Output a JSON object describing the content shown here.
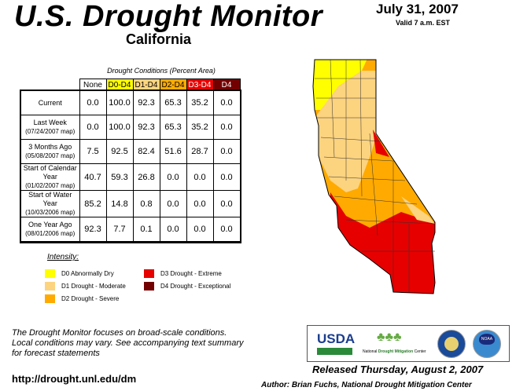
{
  "header": {
    "title": "U.S. Drought Monitor",
    "region": "California",
    "date": "July 31, 2007",
    "valid": "Valid 7 a.m. EST"
  },
  "table": {
    "caption": "Drought Conditions (Percent Area)",
    "columns": [
      "None",
      "D0-D4",
      "D1-D4",
      "D2-D4",
      "D3-D4",
      "D4"
    ],
    "column_colors": [
      "#ffffff",
      "#ffff00",
      "#fcd37f",
      "#ffaa00",
      "#e60000",
      "#730000"
    ],
    "rows": [
      {
        "label": "Current",
        "sub": "",
        "values": [
          "0.0",
          "100.0",
          "92.3",
          "65.3",
          "35.2",
          "0.0"
        ]
      },
      {
        "label": "Last Week",
        "sub": "(07/24/2007 map)",
        "values": [
          "0.0",
          "100.0",
          "92.3",
          "65.3",
          "35.2",
          "0.0"
        ]
      },
      {
        "label": "3 Months Ago",
        "sub": "(05/08/2007 map)",
        "values": [
          "7.5",
          "92.5",
          "82.4",
          "51.6",
          "28.7",
          "0.0"
        ]
      },
      {
        "label": "Start of Calendar Year",
        "sub": "(01/02/2007 map)",
        "values": [
          "40.7",
          "59.3",
          "26.8",
          "0.0",
          "0.0",
          "0.0"
        ]
      },
      {
        "label": "Start of Water Year",
        "sub": "(10/03/2006 map)",
        "values": [
          "85.2",
          "14.8",
          "0.8",
          "0.0",
          "0.0",
          "0.0"
        ]
      },
      {
        "label": "One Year Ago",
        "sub": "(08/01/2006 map)",
        "values": [
          "92.3",
          "7.7",
          "0.1",
          "0.0",
          "0.0",
          "0.0"
        ]
      }
    ]
  },
  "legend": {
    "title": "Intensity:",
    "items": [
      {
        "label": "D0 Abnormally Dry",
        "color": "#ffff00"
      },
      {
        "label": "D1 Drought - Moderate",
        "color": "#fcd37f"
      },
      {
        "label": "D2 Drought - Severe",
        "color": "#ffaa00"
      },
      {
        "label": "D3 Drought - Extreme",
        "color": "#e60000"
      },
      {
        "label": "D4 Drought - Exceptional",
        "color": "#730000"
      }
    ]
  },
  "footer": {
    "focus": [
      "The Drought Monitor focuses on broad-scale conditions.",
      "Local conditions may vary. See accompanying text summary",
      "for forecast statements"
    ],
    "url": "http://drought.unl.edu/dm",
    "released": "Released Thursday, August 2, 2007",
    "author": "Author: Brian Fuchs, National Drought Mitigation Center"
  },
  "logos": {
    "usda": "USDA",
    "ndmc_prefix": "National",
    "ndmc_main": "Drought Mitigation",
    "ndmc_suffix": "Center",
    "noaa": "NOAA"
  }
}
